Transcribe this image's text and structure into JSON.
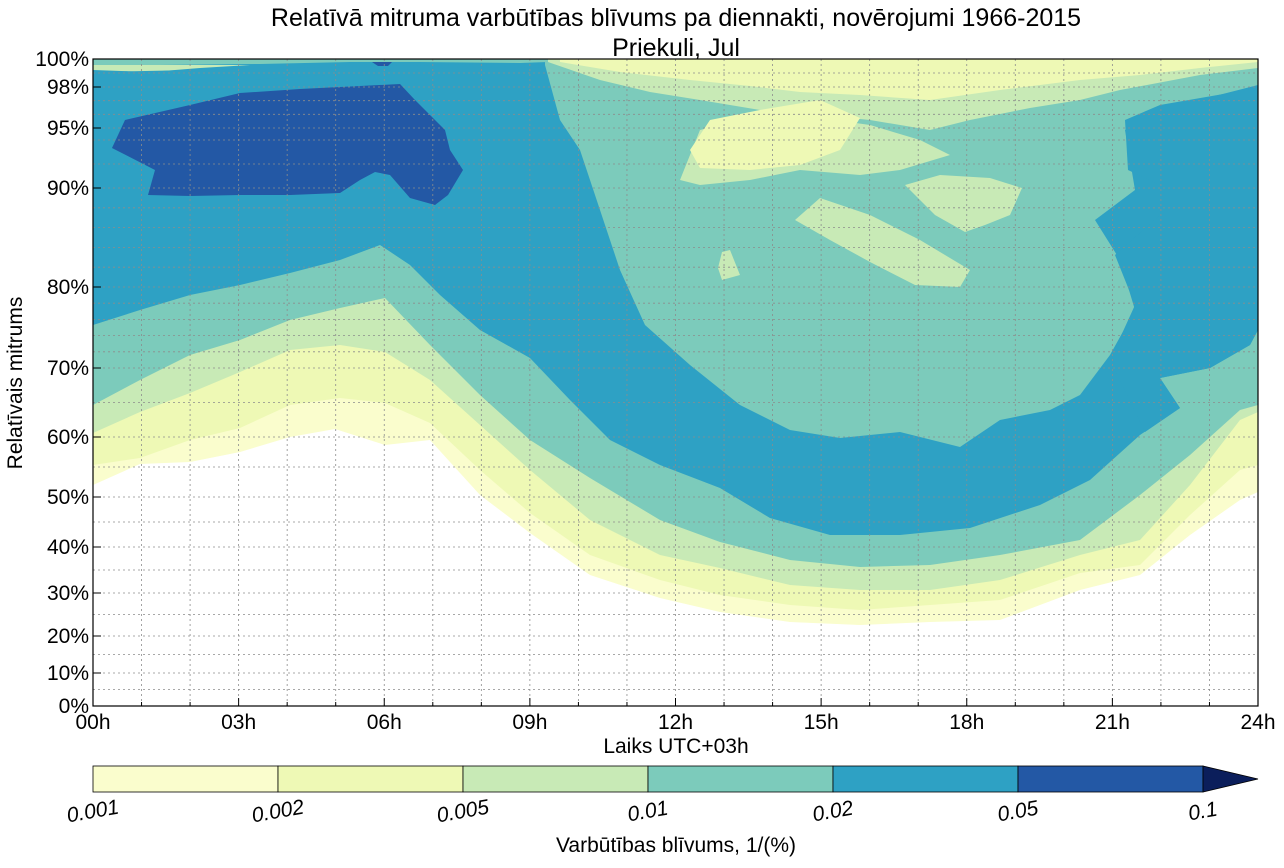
{
  "chart_data": {
    "type": "contourf",
    "title": "Relatīvā mitruma varbūtības blīvums pa diennakti, novērojumi 1966-2015",
    "subtitle": "Priekuli, Jul",
    "xlabel": "Laiks UTC+03h",
    "ylabel": "Relatīvais mitrums",
    "x_range": [
      0,
      24
    ],
    "x_ticks": [
      0,
      3,
      6,
      9,
      12,
      15,
      18,
      21,
      24
    ],
    "x_tick_labels": [
      "00h",
      "03h",
      "06h",
      "09h",
      "12h",
      "15h",
      "18h",
      "21h",
      "24h"
    ],
    "y_range": [
      0,
      100
    ],
    "y_ticks": [
      0,
      10,
      20,
      30,
      40,
      50,
      60,
      70,
      80,
      90,
      95,
      98,
      100
    ],
    "y_tick_labels": [
      "0%",
      "10%",
      "20%",
      "30%",
      "40%",
      "50%",
      "60%",
      "70%",
      "80%",
      "90%",
      "95%",
      "98%",
      "100%"
    ],
    "y_scale": "logit-like (expanded near 100%)",
    "grid": true,
    "colorbar": {
      "label": "Varbūtības blīvums, 1/(%)",
      "levels": [
        0.001,
        0.002,
        0.005,
        0.01,
        0.02,
        0.05,
        0.1
      ],
      "level_labels": [
        "0.001",
        "0.002",
        "0.005",
        "0.01",
        "0.02",
        "0.05",
        "0.1"
      ],
      "colors": [
        "#fafdcd",
        "#eef9b5",
        "#c8eab6",
        "#7ccbbb",
        "#2ea1c4",
        "#2358a5",
        "#0b1e5b"
      ],
      "extend": "max"
    },
    "contour_bands_lower_edge_percent": {
      "hours": [
        0,
        3,
        6,
        9,
        12,
        15,
        18,
        21,
        24
      ],
      "level_0.001": [
        52,
        58,
        61,
        45,
        25,
        22,
        22,
        30,
        50
      ],
      "level_0.002": [
        55,
        62,
        65,
        50,
        30,
        25,
        25,
        35,
        55
      ],
      "level_0.005": [
        60,
        68,
        74,
        57,
        35,
        30,
        30,
        40,
        60
      ],
      "level_0.01": [
        65,
        74,
        80,
        63,
        42,
        36,
        36,
        46,
        65
      ],
      "level_0.02": [
        75,
        83,
        86,
        71,
        52,
        43,
        44,
        55,
        72
      ],
      "level_0.05": [
        94,
        91,
        90,
        100,
        100,
        100,
        100,
        100,
        100
      ]
    }
  }
}
